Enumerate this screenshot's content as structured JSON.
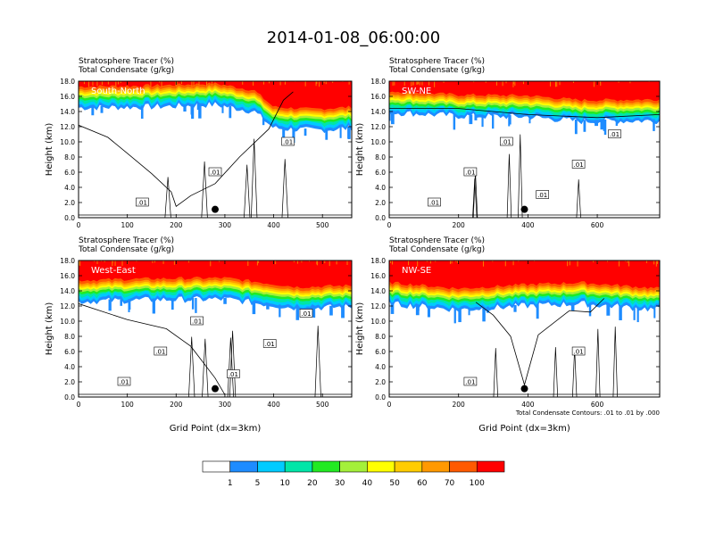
{
  "title": "2014-01-08_06:00:00",
  "colors": [
    "#ffffff",
    "#1e8cff",
    "#00cbff",
    "#00e6a8",
    "#22ea22",
    "#a4f03a",
    "#ffff00",
    "#ffcc00",
    "#ff9900",
    "#ff5a00",
    "#ff0000"
  ],
  "colorbar_labels": [
    "1",
    "5",
    "10",
    "20",
    "30",
    "40",
    "50",
    "60",
    "70",
    "100"
  ],
  "contour_note": "Total Condensate Contours: .01 to .01 by .000",
  "chart_data": [
    {
      "type": "heatmap",
      "panel": "South-North",
      "title": "Stratosphere Tracer   (%)",
      "subtitle": "Total Condensate   (g/kg)",
      "ylabel": "Height (km)",
      "xlabel": "",
      "xlim": [
        0,
        560
      ],
      "ylim": [
        0,
        18
      ],
      "xticks": [
        0,
        100,
        200,
        300,
        400,
        500
      ],
      "yticks": [
        "0.0",
        "2.0",
        "4.0",
        "6.0",
        "8.0",
        "10.0",
        "12.0",
        "14.0",
        "16.0",
        "18.0"
      ],
      "marker_x": 280,
      "contour_labels": [
        ".01",
        ".01",
        ".01"
      ],
      "tracer_base_km": [
        [
          0,
          14.5
        ],
        [
          150,
          14.6
        ],
        [
          280,
          14.9
        ],
        [
          360,
          14.0
        ],
        [
          400,
          11.8
        ],
        [
          480,
          11.5
        ],
        [
          560,
          11.8
        ]
      ],
      "contour_km": [
        [
          0,
          12.2
        ],
        [
          60,
          10.6
        ],
        [
          100,
          8.5
        ],
        [
          150,
          5.8
        ],
        [
          190,
          3.4
        ],
        [
          200,
          1.5
        ],
        [
          230,
          2.9
        ],
        [
          280,
          4.5
        ],
        [
          330,
          8.0
        ],
        [
          390,
          11.7
        ],
        [
          420,
          15.5
        ],
        [
          440,
          16.6
        ]
      ]
    },
    {
      "type": "heatmap",
      "panel": "SW-NE",
      "title": "Stratosphere Tracer   (%)",
      "subtitle": "Total Condensate   (g/kg)",
      "ylabel": "Height (km)",
      "xlabel": "",
      "xlim": [
        0,
        780
      ],
      "ylim": [
        0,
        18
      ],
      "xticks": [
        0,
        200,
        400,
        600
      ],
      "yticks": [
        "0.0",
        "2.0",
        "4.0",
        "6.0",
        "8.0",
        "10.0",
        "12.0",
        "14.0",
        "16.0",
        "18.0"
      ],
      "marker_x": 390,
      "contour_labels": [
        ".01",
        ".01",
        ".01",
        ".01",
        ".01",
        ".01"
      ],
      "tracer_base_km": [
        [
          0,
          13.9
        ],
        [
          200,
          13.4
        ],
        [
          400,
          13.3
        ],
        [
          550,
          12.7
        ],
        [
          780,
          12.8
        ]
      ],
      "contour_km": [
        [
          0,
          14.4
        ],
        [
          200,
          14.4
        ],
        [
          400,
          13.6
        ],
        [
          600,
          13.2
        ],
        [
          780,
          13.6
        ]
      ]
    },
    {
      "type": "heatmap",
      "panel": "West-East",
      "title": "Stratosphere Tracer   (%)",
      "subtitle": "Total Condensate   (g/kg)",
      "ylabel": "Height (km)",
      "xlabel": "Grid Point (dx=3km)",
      "xlim": [
        0,
        560
      ],
      "ylim": [
        0,
        18
      ],
      "xticks": [
        0,
        100,
        200,
        300,
        400,
        500
      ],
      "yticks": [
        "0.0",
        "2.0",
        "4.0",
        "6.0",
        "8.0",
        "10.0",
        "12.0",
        "14.0",
        "16.0",
        "18.0"
      ],
      "marker_x": 280,
      "contour_labels": [
        ".01",
        ".01",
        ".01",
        ".01",
        ".01",
        ".01"
      ],
      "tracer_base_km": [
        [
          0,
          12.6
        ],
        [
          150,
          12.8
        ],
        [
          300,
          12.9
        ],
        [
          450,
          11.7
        ],
        [
          560,
          11.9
        ]
      ],
      "contour_km": [
        [
          0,
          12.3
        ],
        [
          100,
          10.2
        ],
        [
          180,
          9.0
        ],
        [
          230,
          6.7
        ],
        [
          280,
          2.5
        ],
        [
          300,
          0.3
        ]
      ]
    },
    {
      "type": "heatmap",
      "panel": "NW-SE",
      "title": "Stratosphere Tracer   (%)",
      "subtitle": "Total Condensate   (g/kg)",
      "ylabel": "Height (km)",
      "xlabel": "Grid Point (dx=3km)",
      "xlim": [
        0,
        780
      ],
      "ylim": [
        0,
        18
      ],
      "xticks": [
        0,
        200,
        400,
        600
      ],
      "yticks": [
        "0.0",
        "2.0",
        "4.0",
        "6.0",
        "8.0",
        "10.0",
        "12.0",
        "14.0",
        "16.0",
        "18.0"
      ],
      "marker_x": 390,
      "contour_labels": [
        ".01",
        ".01"
      ],
      "tracer_base_km": [
        [
          0,
          12.3
        ],
        [
          200,
          11.5
        ],
        [
          390,
          12.0
        ],
        [
          550,
          12.3
        ],
        [
          780,
          11.5
        ]
      ],
      "contour_km": [
        [
          250,
          12.5
        ],
        [
          300,
          10.8
        ],
        [
          350,
          8.0
        ],
        [
          390,
          1.6
        ],
        [
          430,
          8.2
        ],
        [
          520,
          11.4
        ],
        [
          580,
          11.2
        ],
        [
          620,
          13.0
        ]
      ]
    }
  ]
}
